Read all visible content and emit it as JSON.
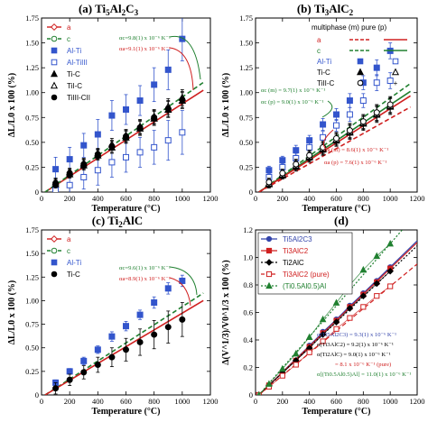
{
  "chart_data": [
    {
      "type": "scatter",
      "title": "(a) Ti5Al2C3",
      "title_main": "(a) Ti",
      "title_parts": [
        "5",
        "Al",
        "2",
        "C",
        "3"
      ],
      "xlabel": "Temperature (°C)",
      "ylabel": "ΔL/L0 x 100 (%)",
      "xlim": [
        0,
        1200
      ],
      "ylim": [
        0,
        1.75
      ],
      "xticks": [
        0,
        200,
        400,
        600,
        800,
        1000,
        1200
      ],
      "yticks": [
        0,
        0.25,
        0.5,
        0.75,
        1,
        1.25,
        1.5,
        1.75
      ],
      "ytick_labels": [
        "0",
        "0.25",
        "0.50",
        "0.75",
        "1.00",
        "1.25",
        "1.50",
        "1.75"
      ],
      "legend": [
        {
          "label": "a",
          "marker": "diamond-open",
          "color": "#d02020",
          "line": "solid"
        },
        {
          "label": "c",
          "marker": "circle-open",
          "color": "#208030",
          "line": "dashed"
        },
        {
          "label": "Al-Ti",
          "marker": "square",
          "color": "#3355cc"
        },
        {
          "label": "Al-TiIII",
          "marker": "square-open",
          "color": "#3355cc"
        },
        {
          "label": "Ti-C",
          "marker": "triangle",
          "color": "#000000"
        },
        {
          "label": "TiI-C",
          "marker": "triangle-open",
          "color": "#000000"
        },
        {
          "label": "TiIII-CII",
          "marker": "circle",
          "color": "#000000"
        }
      ],
      "fits": [
        {
          "name": "a",
          "color": "#d02020",
          "dash": false,
          "slope": 0.00091
        },
        {
          "name": "c",
          "color": "#208030",
          "dash": true,
          "slope": 0.00098
        }
      ],
      "annotations": [
        "αc=9.8(1) x 10⁻⁶ K⁻¹",
        "αa=9.1(1) x 10⁻⁶ K⁻¹"
      ],
      "series": [
        {
          "name": "Al-Ti",
          "marker": "square",
          "color": "#3355cc",
          "x": [
            100,
            200,
            300,
            400,
            500,
            600,
            700,
            800,
            900,
            1000
          ],
          "y": [
            0.23,
            0.33,
            0.47,
            0.58,
            0.77,
            0.83,
            0.92,
            1.08,
            1.23,
            1.54
          ],
          "err": [
            0.12,
            0.12,
            0.12,
            0.15,
            0.15,
            0.15,
            0.15,
            0.17,
            0.2,
            0.22
          ]
        },
        {
          "name": "Al-TiIII",
          "marker": "square-open",
          "color": "#3355cc",
          "x": [
            100,
            200,
            300,
            400,
            500,
            600,
            700,
            800,
            900,
            1000
          ],
          "y": [
            0.02,
            0.07,
            0.15,
            0.22,
            0.3,
            0.35,
            0.4,
            0.45,
            0.52,
            0.6
          ],
          "err": [
            0.12,
            0.12,
            0.12,
            0.15,
            0.15,
            0.15,
            0.15,
            0.17,
            0.2,
            0.22
          ]
        },
        {
          "name": "Ti-C",
          "marker": "triangle",
          "color": "#000000",
          "x": [
            100,
            200,
            300,
            400,
            500,
            600,
            700,
            800,
            900,
            1000
          ],
          "y": [
            0.08,
            0.18,
            0.27,
            0.37,
            0.45,
            0.55,
            0.64,
            0.74,
            0.83,
            0.92
          ],
          "err": [
            0.04,
            0.04,
            0.05,
            0.05,
            0.06,
            0.06,
            0.07,
            0.07,
            0.08,
            0.08
          ]
        },
        {
          "name": "TiI-C",
          "marker": "triangle-open",
          "color": "#000000",
          "x": [
            100,
            200,
            300,
            400,
            500,
            600,
            700,
            800,
            900,
            1000
          ],
          "y": [
            0.1,
            0.2,
            0.29,
            0.39,
            0.48,
            0.57,
            0.66,
            0.76,
            0.86,
            0.95
          ],
          "err": [
            0.04,
            0.04,
            0.05,
            0.05,
            0.06,
            0.06,
            0.07,
            0.07,
            0.08,
            0.08
          ]
        },
        {
          "name": "TiIII-CII",
          "marker": "circle",
          "color": "#000000",
          "x": [
            100,
            200,
            300,
            400,
            500,
            600,
            700,
            800,
            900,
            1000
          ],
          "y": [
            0.09,
            0.19,
            0.28,
            0.38,
            0.46,
            0.56,
            0.65,
            0.75,
            0.84,
            0.93
          ],
          "err": [
            0.04,
            0.04,
            0.05,
            0.05,
            0.06,
            0.06,
            0.07,
            0.07,
            0.08,
            0.08
          ]
        }
      ]
    },
    {
      "type": "scatter",
      "title": "(b) Ti3AlC2",
      "title_main": "(b) Ti",
      "title_parts": [
        "3",
        "AlC",
        "2",
        "",
        ""
      ],
      "xlabel": "Temperature (°C)",
      "ylabel": "ΔL/L0 x 100 (%)",
      "xlim": [
        0,
        1200
      ],
      "ylim": [
        0,
        1.75
      ],
      "xticks": [
        0,
        200,
        400,
        600,
        800,
        1000,
        1200
      ],
      "yticks": [
        0,
        0.25,
        0.5,
        0.75,
        1,
        1.25,
        1.5,
        1.75
      ],
      "ytick_labels": [
        "0",
        "0.25",
        "0.50",
        "0.75",
        "1.00",
        "1.25",
        "1.50",
        "1.75"
      ],
      "legend_header": "multiphase (m)  pure (p)",
      "legend": [
        {
          "label": "a",
          "color": "#d02020",
          "line": "solid"
        },
        {
          "label": "c",
          "color": "#208030",
          "line": "dashed"
        },
        {
          "label": "Al-Ti",
          "marker": "square",
          "color": "#3355cc"
        },
        {
          "label": "Ti-C",
          "marker": "triangle",
          "color": "#000000"
        },
        {
          "label": "TiII-C",
          "marker": "circle-open",
          "color": "#000000"
        }
      ],
      "fits": [
        {
          "name": "c (m)",
          "color": "#208030",
          "dash": true,
          "slope": 0.00097
        },
        {
          "name": "c (p)",
          "color": "#208030",
          "dash": false,
          "slope": 0.0009
        },
        {
          "name": "a (m)",
          "color": "#d02020",
          "dash": false,
          "slope": 0.00086
        },
        {
          "name": "a (p)",
          "color": "#d02020",
          "dash": true,
          "slope": 0.00076
        }
      ],
      "annotations": [
        "αc (m) = 9.7(1) x 10⁻⁶ K⁻¹",
        "αc (p) = 9.0(1) x 10⁻⁶ K⁻¹",
        "αa (m) = 8.6(1) x 10⁻⁶ K⁻¹",
        "αa (p) = 7.6(1) x 10⁻⁶ K⁻¹"
      ],
      "series": [
        {
          "name": "Al-Ti",
          "marker": "square",
          "color": "#3355cc",
          "x": [
            100,
            200,
            300,
            400,
            500,
            600,
            700,
            800,
            900,
            1000
          ],
          "y": [
            0.22,
            0.32,
            0.42,
            0.52,
            0.68,
            0.78,
            0.92,
            1.1,
            1.25,
            1.42
          ],
          "err": [
            0.04,
            0.04,
            0.05,
            0.05,
            0.06,
            0.06,
            0.07,
            0.07,
            0.08,
            0.08
          ]
        },
        {
          "name": "Al-Ti (p)",
          "marker": "square-open",
          "color": "#3355cc",
          "x": [
            100,
            200,
            300,
            400,
            500,
            600,
            700,
            800,
            900,
            1000
          ],
          "y": [
            0.15,
            0.25,
            0.34,
            0.45,
            0.55,
            0.67,
            0.78,
            0.92,
            1.1,
            1.12
          ],
          "err": [
            0.04,
            0.04,
            0.05,
            0.05,
            0.06,
            0.06,
            0.07,
            0.07,
            0.08,
            0.08
          ]
        },
        {
          "name": "Ti-C",
          "marker": "triangle",
          "color": "#000000",
          "x": [
            100,
            200,
            300,
            400,
            500,
            600,
            700,
            800,
            900,
            1000
          ],
          "y": [
            0.08,
            0.17,
            0.26,
            0.35,
            0.43,
            0.52,
            0.6,
            0.69,
            0.78,
            0.86
          ],
          "err": [
            0.04,
            0.04,
            0.05,
            0.05,
            0.06,
            0.06,
            0.07,
            0.07,
            0.08,
            0.08
          ]
        },
        {
          "name": "Ti-C (p)",
          "marker": "triangle-open",
          "color": "#000000",
          "x": [
            100,
            200,
            300,
            400,
            500,
            600,
            700,
            800,
            900,
            1000
          ],
          "y": [
            0.09,
            0.18,
            0.27,
            0.36,
            0.44,
            0.53,
            0.61,
            0.7,
            0.79,
            0.87
          ],
          "err": [
            0.04,
            0.04,
            0.05,
            0.05,
            0.06,
            0.06,
            0.07,
            0.07,
            0.08,
            0.08
          ]
        },
        {
          "name": "TiII-C",
          "marker": "circle-open",
          "color": "#000000",
          "x": [
            100,
            200,
            300,
            400,
            500,
            600,
            700,
            800,
            900,
            1000
          ],
          "y": [
            0.1,
            0.19,
            0.28,
            0.37,
            0.45,
            0.54,
            0.62,
            0.71,
            0.8,
            0.88
          ],
          "err": [
            0.04,
            0.04,
            0.05,
            0.05,
            0.06,
            0.06,
            0.07,
            0.07,
            0.08,
            0.08
          ]
        }
      ]
    },
    {
      "type": "scatter",
      "title": "(c) Ti2AlC",
      "title_main": "(c) Ti",
      "title_parts": [
        "2",
        "AlC",
        "",
        "",
        ""
      ],
      "xlabel": "Temperature (°C)",
      "ylabel": "ΔL/L0 x 100 (%)",
      "xlim": [
        0,
        1200
      ],
      "ylim": [
        0,
        1.75
      ],
      "xticks": [
        0,
        200,
        400,
        600,
        800,
        1000,
        1200
      ],
      "yticks": [
        0,
        0.25,
        0.5,
        0.75,
        1,
        1.25,
        1.5,
        1.75
      ],
      "ytick_labels": [
        "0",
        "0.25",
        "0.50",
        "0.75",
        "1.00",
        "1.25",
        "1.50",
        "1.75"
      ],
      "legend": [
        {
          "label": "a",
          "marker": "diamond-open",
          "color": "#d02020",
          "line": "solid"
        },
        {
          "label": "c",
          "marker": "circle-open",
          "color": "#208030",
          "line": "dashed"
        },
        {
          "label": "Al-Ti",
          "marker": "square",
          "color": "#3355cc"
        },
        {
          "label": "Ti-C",
          "marker": "circle",
          "color": "#000000"
        }
      ],
      "fits": [
        {
          "name": "c",
          "color": "#208030",
          "dash": true,
          "slope": 0.00096
        },
        {
          "name": "a",
          "color": "#d02020",
          "dash": false,
          "slope": 0.00089
        }
      ],
      "annotations": [
        "αc=9.6(1) x 10⁻⁶ K⁻¹",
        "αa=8.9(1) x 10⁻⁶ K⁻¹"
      ],
      "series": [
        {
          "name": "Al-Ti",
          "marker": "square",
          "color": "#3355cc",
          "x": [
            100,
            200,
            300,
            400,
            500,
            600,
            700,
            800,
            900,
            1000
          ],
          "y": [
            0.13,
            0.25,
            0.36,
            0.48,
            0.62,
            0.73,
            0.85,
            0.98,
            1.13,
            1.21
          ],
          "err": [
            0.03,
            0.03,
            0.04,
            0.04,
            0.05,
            0.05,
            0.05,
            0.06,
            0.06,
            0.06
          ]
        },
        {
          "name": "Ti-C",
          "marker": "circle",
          "color": "#000000",
          "x": [
            100,
            200,
            300,
            400,
            500,
            600,
            700,
            800,
            900,
            1000
          ],
          "y": [
            0.07,
            0.16,
            0.24,
            0.32,
            0.4,
            0.48,
            0.56,
            0.64,
            0.72,
            0.8
          ],
          "err": [
            0.06,
            0.06,
            0.07,
            0.08,
            0.1,
            0.12,
            0.14,
            0.15,
            0.17,
            0.18
          ]
        }
      ]
    },
    {
      "type": "line",
      "title": "(d)",
      "title_main": "(d)",
      "title_parts": [
        "",
        "",
        "",
        "",
        ""
      ],
      "xlabel": "Temperature (°C)",
      "ylabel": "Δ(V^1/3)/V0^1/3 x 100 (%)",
      "xlim": [
        0,
        1200
      ],
      "ylim": [
        0,
        1.2
      ],
      "xticks": [
        0,
        200,
        400,
        600,
        800,
        1000,
        1200
      ],
      "yticks": [
        0,
        0.2,
        0.4,
        0.6,
        0.8,
        1,
        1.2
      ],
      "ytick_labels": [
        "0",
        "0.2",
        "0.4",
        "0.6",
        "0.8",
        "1.0",
        "1.2"
      ],
      "legend": [
        {
          "label": "Ti5Al2C3",
          "marker": "circle",
          "color": "#3344aa",
          "line": "solid"
        },
        {
          "label": "Ti3AlC2",
          "marker": "square",
          "color": "#d02020",
          "line": "solid"
        },
        {
          "label": "Ti2AlC",
          "marker": "diamond",
          "color": "#000000",
          "line": "dotted"
        },
        {
          "label": "Ti3AlC2 (pure)",
          "marker": "square-open",
          "color": "#d02020",
          "line": "dashed"
        },
        {
          "label": "(Ti0.5Al0.5)Al",
          "marker": "triangle",
          "color": "#208030",
          "line": "dotted"
        }
      ],
      "annotations": [
        "α(Ti5Al2C3) = 9.3(1) x 10⁻⁶ K⁻¹",
        "α(Ti3AlC2) = 9.2(1) x 10⁻⁶ K⁻¹",
        "α(Ti2AlC) = 9.0(1) x 10⁻⁶ K⁻¹",
        "= 8.1 x 10⁻⁶ K⁻¹ (pure)",
        "α[(Ti0.5Al0.5)Al] = 11.0(1) x 10⁻⁶ K⁻¹"
      ],
      "series": [
        {
          "name": "Ti5Al2C3",
          "marker": "circle",
          "color": "#3344aa",
          "dash": "",
          "x": [
            25,
            100,
            200,
            300,
            400,
            500,
            600,
            700,
            800,
            900,
            1000
          ],
          "y": [
            0.0,
            0.07,
            0.16,
            0.25,
            0.36,
            0.46,
            0.55,
            0.65,
            0.74,
            0.83,
            0.93
          ]
        },
        {
          "name": "Ti3AlC2",
          "marker": "square",
          "color": "#d02020",
          "dash": "",
          "x": [
            25,
            100,
            200,
            300,
            400,
            500,
            600,
            700,
            800,
            900,
            1000
          ],
          "y": [
            0.0,
            0.07,
            0.16,
            0.25,
            0.35,
            0.45,
            0.54,
            0.64,
            0.73,
            0.82,
            0.92
          ]
        },
        {
          "name": "Ti2AlC",
          "marker": "diamond",
          "color": "#000000",
          "dash": "2,2",
          "x": [
            25,
            100,
            200,
            300,
            400,
            500,
            600,
            700,
            800,
            900,
            1000
          ],
          "y": [
            0.0,
            0.07,
            0.16,
            0.25,
            0.34,
            0.44,
            0.53,
            0.63,
            0.72,
            0.81,
            0.9
          ]
        },
        {
          "name": "Ti3AlC2 (pure)",
          "marker": "square-open",
          "color": "#d02020",
          "dash": "5,3",
          "x": [
            25,
            100,
            200,
            300,
            400,
            500,
            600,
            700,
            800,
            900,
            1000
          ],
          "y": [
            0.0,
            0.06,
            0.14,
            0.22,
            0.31,
            0.39,
            0.48,
            0.56,
            0.64,
            0.72,
            0.79
          ]
        },
        {
          "name": "(Ti0.5Al0.5)Al",
          "marker": "triangle",
          "color": "#208030",
          "dash": "2,2",
          "x": [
            25,
            100,
            200,
            300,
            400,
            500,
            600,
            700,
            800,
            900,
            1000
          ],
          "y": [
            0.0,
            0.08,
            0.19,
            0.3,
            0.42,
            0.55,
            0.67,
            0.8,
            0.91,
            1.01,
            1.1
          ]
        }
      ]
    }
  ]
}
